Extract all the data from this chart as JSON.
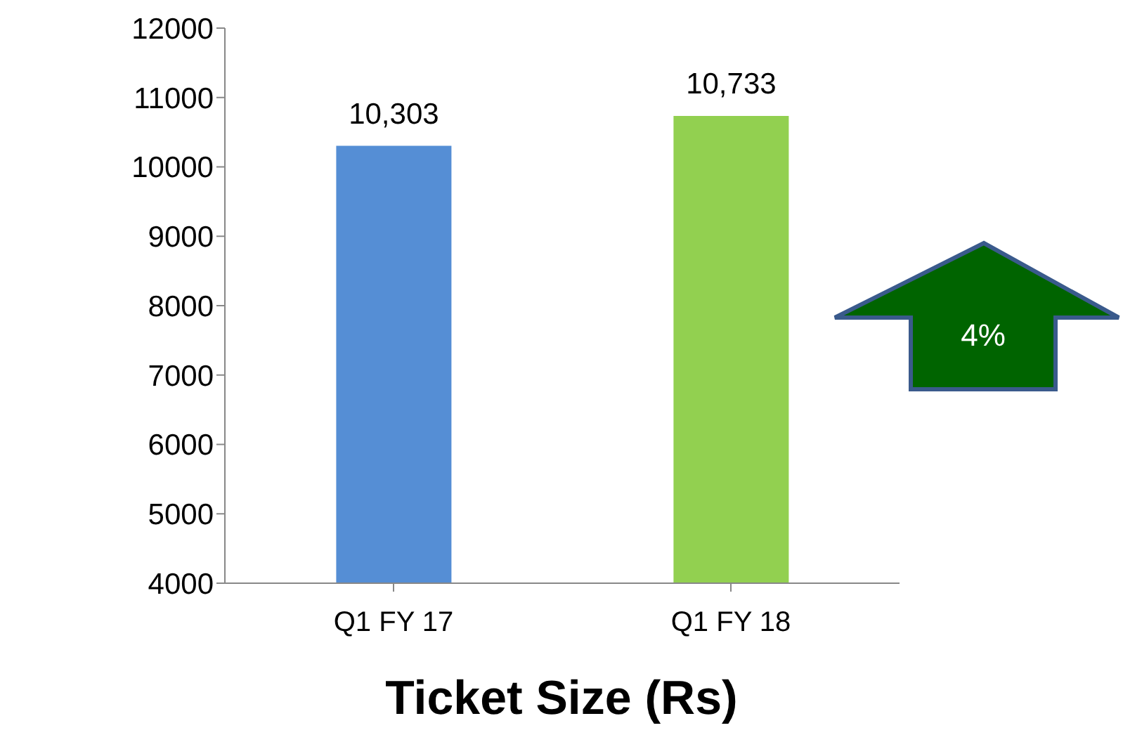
{
  "chart_data": {
    "type": "bar",
    "title": "Ticket Size (Rs)",
    "categories": [
      "Q1 FY 17",
      "Q1 FY 18"
    ],
    "values": [
      10303,
      10733
    ],
    "value_labels": [
      "10,303",
      "10,733"
    ],
    "colors": [
      "#558ed5",
      "#92d050"
    ],
    "ylim": [
      4000,
      12000
    ],
    "yticks": [
      4000,
      5000,
      6000,
      7000,
      8000,
      9000,
      10000,
      11000,
      12000
    ],
    "annotations": [
      "4%"
    ]
  }
}
